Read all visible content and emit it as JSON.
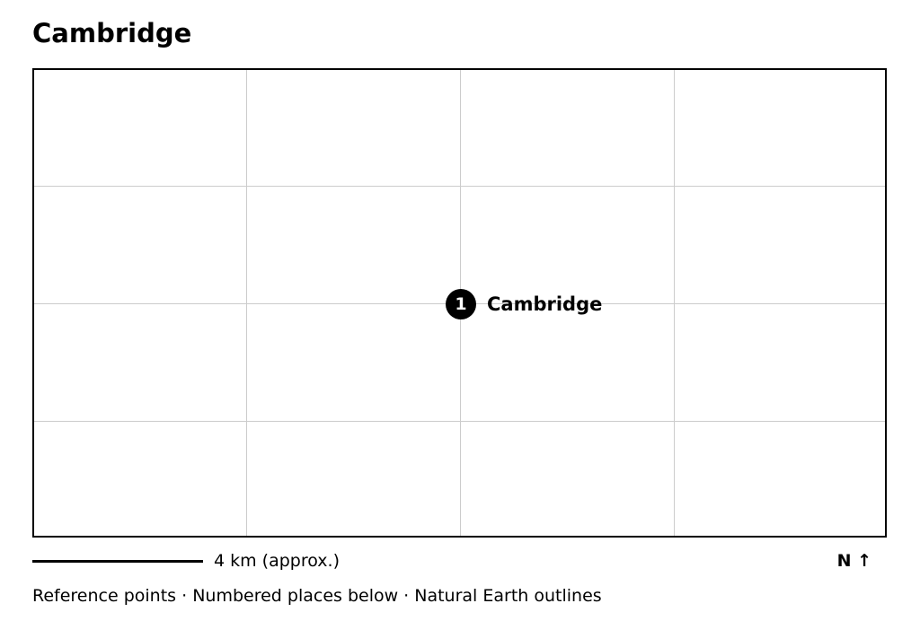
{
  "title": "Cambridge",
  "map": {
    "places": [
      {
        "number": "1",
        "name": "Cambridge"
      }
    ]
  },
  "scale": {
    "label": "4 km (approx.)"
  },
  "north": {
    "label": "N ↑"
  },
  "footer": {
    "text": "Reference points · Numbered places below · Natural Earth outlines"
  }
}
